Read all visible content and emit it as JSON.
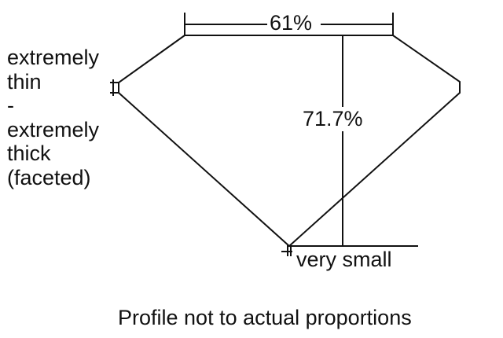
{
  "diagram": {
    "table_label": "61%",
    "depth_label": "71.7%",
    "culet_label": "very small",
    "girdle_label_lines": [
      "extremely",
      "thin",
      "-",
      "extremely",
      "thick",
      "(faceted)"
    ],
    "caption": "Profile not to actual proportions",
    "line_color": "#111111"
  }
}
